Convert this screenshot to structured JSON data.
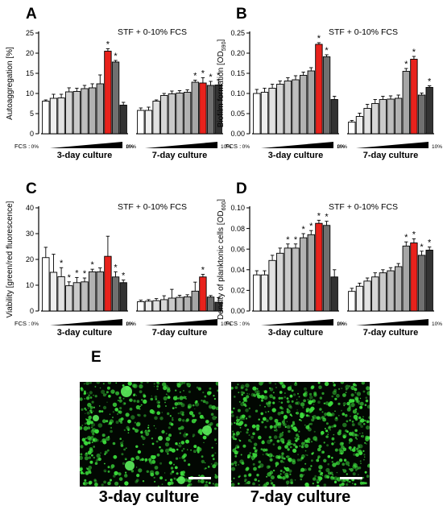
{
  "colors": {
    "red_bar": "#e8221c",
    "grey_dark": "#333333",
    "grey_light": "#eeeeee",
    "micro_background": "#020702",
    "micro_fluorescence": "#3cdc3c"
  },
  "chart_data": [
    {
      "type": "bar",
      "panel": "A",
      "title": "STF + 0-10% FCS",
      "ylabel": "Autoaggregation [%]",
      "ylim": [
        0,
        25
      ],
      "yticks": [
        "0",
        "5",
        "10",
        "15",
        "20",
        "25"
      ],
      "fcs_label": "FCS :",
      "fcs_min_label": "0%",
      "fcs_max_label": "10%",
      "groups": [
        {
          "label": "3-day culture",
          "values": [
            8.1,
            8.8,
            8.9,
            10.4,
            10.5,
            11.2,
            11.4,
            12.4,
            20.5,
            17.8,
            7.1
          ],
          "errors": [
            0.3,
            1.0,
            0.9,
            1.0,
            0.8,
            0.8,
            1.0,
            2.2,
            0.6,
            0.4,
            0.7
          ],
          "significant": [
            false,
            false,
            false,
            false,
            false,
            false,
            false,
            false,
            true,
            true,
            false
          ]
        },
        {
          "label": "7-day culture",
          "values": [
            5.8,
            5.8,
            8.1,
            9.5,
            9.9,
            10.1,
            10.3,
            12.8,
            12.6,
            12.0,
            12.1
          ],
          "errors": [
            0.6,
            0.8,
            0.3,
            0.5,
            0.7,
            0.6,
            0.6,
            0.5,
            1.3,
            1.0,
            1.3
          ],
          "significant": [
            false,
            false,
            false,
            false,
            false,
            false,
            false,
            true,
            true,
            true,
            true
          ]
        }
      ]
    },
    {
      "type": "bar",
      "panel": "B",
      "title": "STF + 0-10% FCS",
      "ylabel": "Biofilm formation [OD590]",
      "ylim": [
        0,
        0.25
      ],
      "yticks": [
        "0.00",
        "0.05",
        "0.10",
        "0.15",
        "0.20",
        "0.25"
      ],
      "fcs_label": "FCS :",
      "fcs_min_label": "0%",
      "fcs_max_label": "10%",
      "groups": [
        {
          "label": "3-day culture",
          "values": [
            0.1,
            0.103,
            0.113,
            0.123,
            0.131,
            0.134,
            0.145,
            0.156,
            0.222,
            0.191,
            0.085
          ],
          "errors": [
            0.01,
            0.01,
            0.01,
            0.008,
            0.008,
            0.01,
            0.008,
            0.008,
            0.004,
            0.005,
            0.008
          ],
          "significant": [
            false,
            false,
            false,
            false,
            false,
            false,
            false,
            false,
            true,
            true,
            false
          ]
        },
        {
          "label": "7-day culture",
          "values": [
            0.029,
            0.043,
            0.063,
            0.075,
            0.085,
            0.086,
            0.088,
            0.155,
            0.185,
            0.096,
            0.115
          ],
          "errors": [
            0.004,
            0.008,
            0.01,
            0.01,
            0.008,
            0.008,
            0.008,
            0.007,
            0.007,
            0.005,
            0.004
          ],
          "significant": [
            false,
            false,
            false,
            false,
            false,
            false,
            false,
            true,
            true,
            false,
            true
          ]
        }
      ]
    },
    {
      "type": "bar",
      "panel": "C",
      "title": "STF + 0-10% FCS",
      "ylabel": "Viability [green/red fluorescence]",
      "ylim": [
        0,
        40
      ],
      "yticks": [
        "0",
        "10",
        "20",
        "30",
        "40"
      ],
      "fcs_label": "FCS :",
      "fcs_min_label": "0%",
      "fcs_max_label": "10%",
      "groups": [
        {
          "label": "3-day culture",
          "values": [
            20.7,
            15.0,
            13.3,
            9.8,
            11.0,
            11.3,
            15.2,
            15.2,
            21.2,
            13.2,
            11.0
          ],
          "errors": [
            4.0,
            7.0,
            3.5,
            1.5,
            2.0,
            1.5,
            1.0,
            1.5,
            7.8,
            2.0,
            1.0
          ],
          "significant": [
            false,
            false,
            true,
            true,
            true,
            true,
            true,
            false,
            false,
            true,
            true
          ]
        },
        {
          "label": "7-day culture",
          "values": [
            3.6,
            3.8,
            4.0,
            4.4,
            5.0,
            5.3,
            5.5,
            7.7,
            13.2,
            5.4,
            3.4
          ],
          "errors": [
            0.6,
            0.6,
            0.8,
            1.5,
            3.4,
            0.8,
            0.8,
            3.5,
            1.0,
            0.6,
            1.8
          ],
          "significant": [
            false,
            false,
            false,
            false,
            false,
            false,
            false,
            false,
            true,
            false,
            false
          ]
        }
      ]
    },
    {
      "type": "bar",
      "panel": "D",
      "title": "STF + 0-10% FCS",
      "ylabel": "Density of planktonic cells [OD600]",
      "ylim": [
        0,
        0.1
      ],
      "yticks": [
        "0.00",
        "0.02",
        "0.04",
        "0.06",
        "0.08",
        "0.10"
      ],
      "fcs_label": "FCS :",
      "fcs_min_label": "0%",
      "fcs_max_label": "10%",
      "groups": [
        {
          "label": "3-day culture",
          "values": [
            0.035,
            0.035,
            0.049,
            0.056,
            0.061,
            0.061,
            0.071,
            0.074,
            0.085,
            0.083,
            0.033
          ],
          "errors": [
            0.004,
            0.004,
            0.005,
            0.005,
            0.004,
            0.004,
            0.004,
            0.004,
            0.003,
            0.004,
            0.007
          ],
          "significant": [
            false,
            false,
            false,
            false,
            true,
            true,
            true,
            true,
            true,
            true,
            false
          ]
        },
        {
          "label": "7-day culture",
          "values": [
            0.019,
            0.024,
            0.029,
            0.033,
            0.037,
            0.039,
            0.043,
            0.063,
            0.066,
            0.054,
            0.059
          ],
          "errors": [
            0.003,
            0.003,
            0.003,
            0.004,
            0.003,
            0.003,
            0.003,
            0.004,
            0.004,
            0.004,
            0.003
          ],
          "significant": [
            false,
            false,
            false,
            false,
            false,
            false,
            false,
            true,
            true,
            true,
            true
          ]
        }
      ]
    }
  ],
  "microscopy": {
    "panel": "E",
    "images": [
      {
        "caption": "3-day culture"
      },
      {
        "caption": "7-day culture"
      }
    ]
  }
}
